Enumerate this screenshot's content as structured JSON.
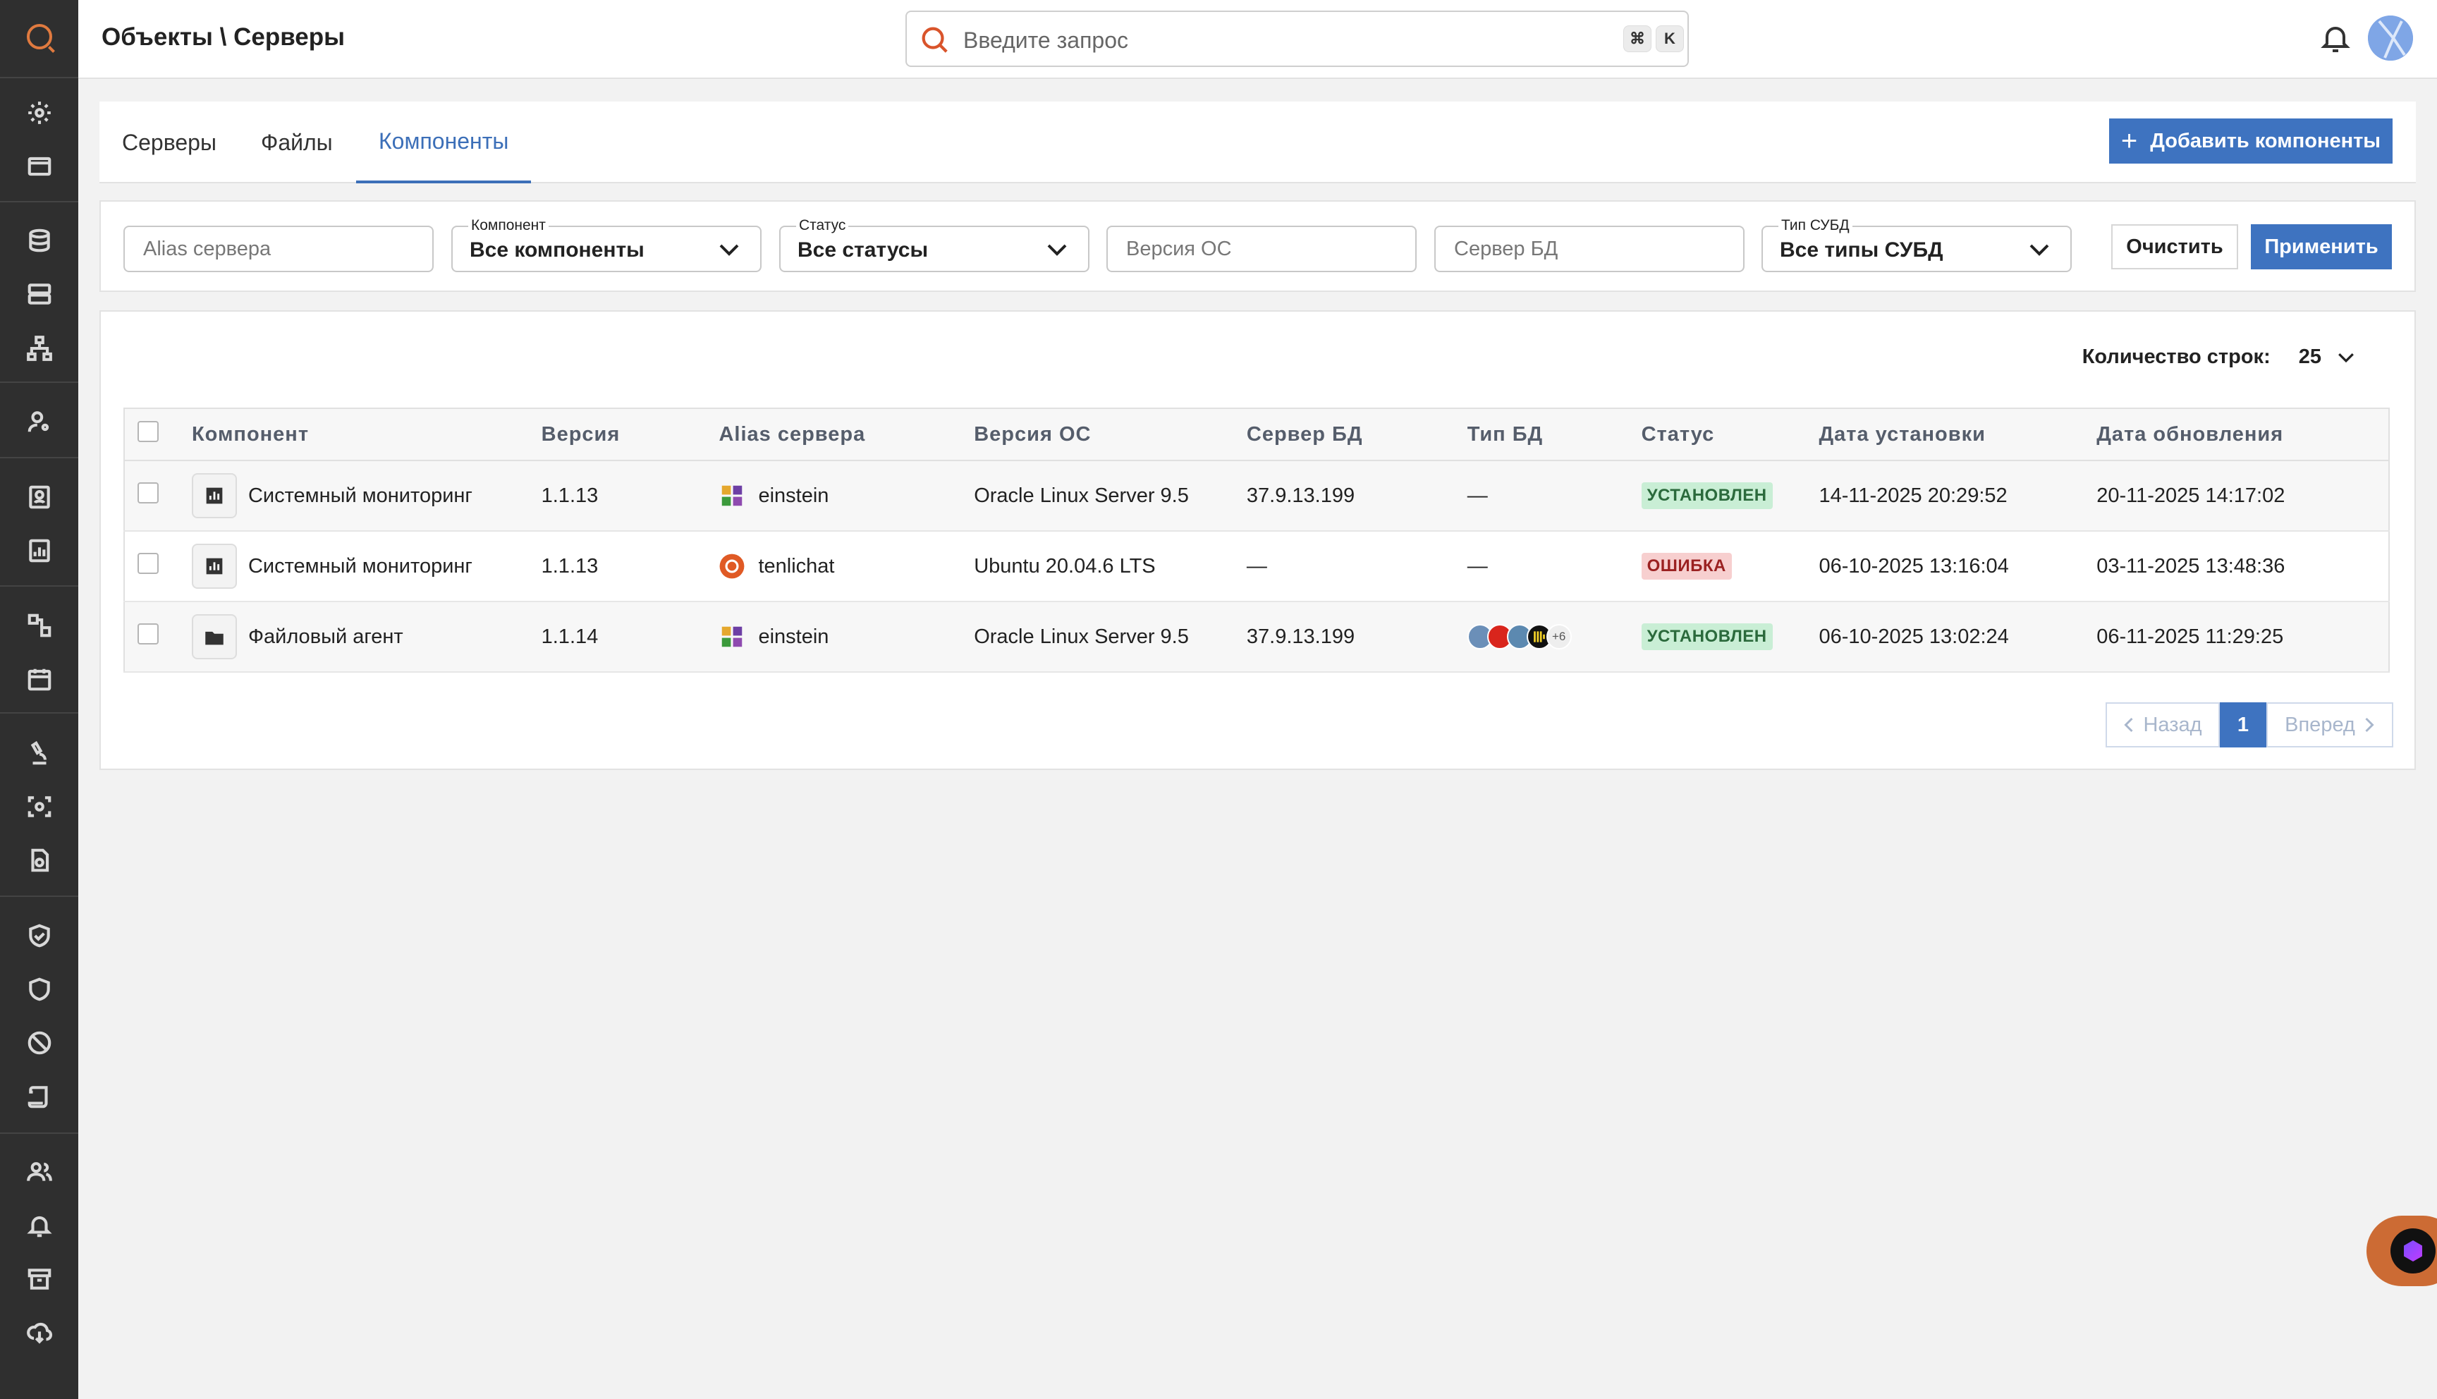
{
  "header": {
    "title": "Объекты \\ Серверы",
    "search_placeholder": "Введите запрос",
    "kbd_cmd": "⌘",
    "kbd_key": "K"
  },
  "sidebar": {
    "icons": [
      "gear-icon",
      "window-icon",
      "database-icon",
      "servers-icon",
      "network-icon",
      "user-settings-icon",
      "contact-card-icon",
      "report-icon",
      "workflow-icon",
      "calendar-icon",
      "microscope-icon",
      "scan-icon",
      "document-search-icon",
      "shield-check-icon",
      "shield-icon",
      "block-icon",
      "scroll-icon",
      "users-icon",
      "alert-bell-icon",
      "archive-icon",
      "cloud-download-icon"
    ]
  },
  "tabs": [
    {
      "label": "Серверы",
      "active": false
    },
    {
      "label": "Файлы",
      "active": false
    },
    {
      "label": "Компоненты",
      "active": true
    }
  ],
  "add_button": "Добавить компоненты",
  "filters": {
    "alias_placeholder": "Alias сервера",
    "component_label": "Компонент",
    "component_value": "Все компоненты",
    "status_label": "Статус",
    "status_value": "Все статусы",
    "os_placeholder": "Версия ОС",
    "db_server_placeholder": "Сервер БД",
    "dbms_label": "Тип СУБД",
    "dbms_value": "Все типы СУБД",
    "clear": "Очистить",
    "apply": "Применить"
  },
  "rows_count": {
    "label": "Количество строк:",
    "value": "25"
  },
  "table": {
    "columns": [
      "Компонент",
      "Версия",
      "Alias сервера",
      "Версия ОС",
      "Сервер БД",
      "Тип БД",
      "Статус",
      "Дата установки",
      "Дата обновления"
    ],
    "rows": [
      {
        "component": "Системный мониторинг",
        "version": "1.1.13",
        "alias": "einstein",
        "os": "Oracle Linux Server 9.5",
        "db_server": "37.9.13.199",
        "db_type": "—",
        "status": "УСТАНОВЛЕН",
        "installed": "14-11-2025 20:29:52",
        "updated": "20-11-2025 14:17:02"
      },
      {
        "component": "Системный мониторинг",
        "version": "1.1.13",
        "alias": "tenlichat",
        "os": "Ubuntu 20.04.6 LTS",
        "db_server": "—",
        "db_type": "—",
        "status": "ОШИБКА",
        "installed": "06-10-2025 13:16:04",
        "updated": "03-11-2025 13:48:36"
      },
      {
        "component": "Файловый агент",
        "version": "1.1.14",
        "alias": "einstein",
        "os": "Oracle Linux Server 9.5",
        "db_server": "37.9.13.199",
        "db_type_more": "+6",
        "status": "УСТАНОВЛЕН",
        "installed": "06-10-2025 13:02:24",
        "updated": "06-11-2025 11:29:25"
      }
    ]
  },
  "pager": {
    "prev": "Назад",
    "current": "1",
    "next": "Вперед"
  },
  "colors": {
    "accent": "#3e73c0",
    "sidebar": "#2f2f2f",
    "brand": "#e07a3f",
    "ok_bg": "#c9eed5",
    "err_bg": "#f7cfcf"
  }
}
